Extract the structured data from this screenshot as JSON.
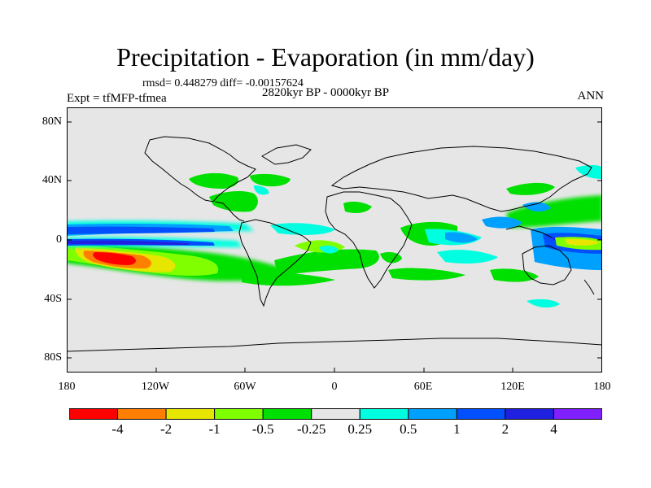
{
  "header": {
    "title": "Precipitation - Evaporation (in mm/day)",
    "stats": "rmsd= 0.448279 diff= -0.00157624",
    "subtitle": "2820kyr BP - 0000kyr BP",
    "experiment": "Expt = tfMFP-tfmea",
    "season": "ANN"
  },
  "axes": {
    "lat_labels": [
      "80N",
      "40N",
      "0",
      "40S",
      "80S"
    ],
    "lon_labels": [
      "180",
      "120W",
      "60W",
      "0",
      "60E",
      "120E",
      "180"
    ]
  },
  "colorbar": {
    "colors": [
      "#ff0000",
      "#ff8000",
      "#e6e600",
      "#80ff00",
      "#00e000",
      "#e6e6e6",
      "#00ffe0",
      "#00a0ff",
      "#0050ff",
      "#2020e0",
      "#8020ff"
    ],
    "labels": [
      "-4",
      "-2",
      "-1",
      "-0.5",
      "-0.25",
      "0.25",
      "0.5",
      "1",
      "2",
      "4"
    ]
  },
  "colors": {
    "background": "#e6e6e6",
    "coastline": "#000000"
  }
}
